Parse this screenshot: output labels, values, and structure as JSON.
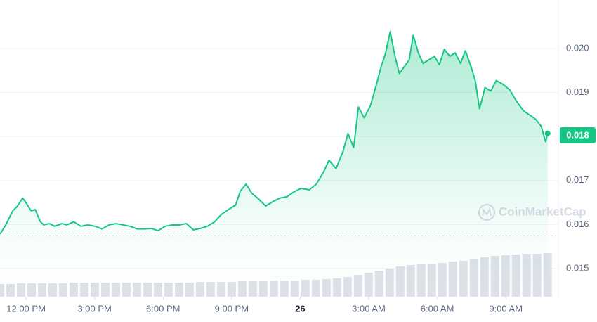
{
  "chart_data": {
    "type": "line",
    "color": "#16c784",
    "grid": true,
    "xlim": [
      10.86,
      35.3
    ],
    "ylim": [
      0.01436,
      0.0211
    ],
    "xticks": [
      {
        "value": 12,
        "label": "12:00 PM"
      },
      {
        "value": 15,
        "label": "3:00 PM"
      },
      {
        "value": 18,
        "label": "6:00 PM"
      },
      {
        "value": 21,
        "label": "9:00 PM"
      },
      {
        "value": 24,
        "label": "26"
      },
      {
        "value": 27,
        "label": "3:00 AM"
      },
      {
        "value": 30,
        "label": "6:00 AM"
      },
      {
        "value": 33,
        "label": "9:00 AM"
      }
    ],
    "yticks": [
      {
        "value": 0.02,
        "label": "0.020"
      },
      0.019,
      0.018,
      0.017,
      0.016,
      0.015
    ],
    "x": [
      10.86,
      11.11,
      11.42,
      11.63,
      11.85,
      12.03,
      12.22,
      12.4,
      12.62,
      12.77,
      13.02,
      13.26,
      13.57,
      13.78,
      14.09,
      14.4,
      14.71,
      15.02,
      15.32,
      15.63,
      15.94,
      16.25,
      16.55,
      16.86,
      17.17,
      17.48,
      17.78,
      18.09,
      18.4,
      18.71,
      19.02,
      19.32,
      19.63,
      19.94,
      20.25,
      20.55,
      20.86,
      21.17,
      21.38,
      21.63,
      21.88,
      22.18,
      22.49,
      22.8,
      23.11,
      23.42,
      23.72,
      24.03,
      24.4,
      24.71,
      25.02,
      25.26,
      25.57,
      25.88,
      26.09,
      26.34,
      26.55,
      26.8,
      27.08,
      27.32,
      27.54,
      27.72,
      27.94,
      28.15,
      28.34,
      28.55,
      28.77,
      28.95,
      29.17,
      29.38,
      29.63,
      29.88,
      30.09,
      30.31,
      30.55,
      30.78,
      31.02,
      31.23,
      31.48,
      31.66,
      31.85,
      32.09,
      32.34,
      32.58,
      32.86,
      33.17,
      33.48,
      33.78,
      34.09,
      34.31,
      34.55,
      34.74,
      34.83
    ],
    "values": [
      0.01578,
      0.01599,
      0.01631,
      0.01642,
      0.0166,
      0.01647,
      0.01631,
      0.01634,
      0.01607,
      0.01599,
      0.01602,
      0.01596,
      0.01602,
      0.01599,
      0.01606,
      0.01596,
      0.01599,
      0.01596,
      0.0159,
      0.01599,
      0.01602,
      0.01599,
      0.01596,
      0.0159,
      0.0159,
      0.01591,
      0.01586,
      0.01596,
      0.01599,
      0.01599,
      0.01602,
      0.01588,
      0.01591,
      0.01596,
      0.01606,
      0.01623,
      0.01634,
      0.01644,
      0.01676,
      0.01692,
      0.01671,
      0.01658,
      0.01642,
      0.01652,
      0.0166,
      0.01663,
      0.01674,
      0.01682,
      0.01679,
      0.01692,
      0.01719,
      0.01746,
      0.01727,
      0.01767,
      0.01807,
      0.01775,
      0.01867,
      0.01842,
      0.01871,
      0.01915,
      0.01958,
      0.01986,
      0.02038,
      0.01982,
      0.01943,
      0.01958,
      0.01974,
      0.0203,
      0.0199,
      0.01966,
      0.01974,
      0.01982,
      0.01963,
      0.01998,
      0.01982,
      0.0199,
      0.01966,
      0.01995,
      0.01958,
      0.01927,
      0.01863,
      0.01911,
      0.01903,
      0.01927,
      0.01919,
      0.01906,
      0.01879,
      0.01858,
      0.01847,
      0.01839,
      0.01823,
      0.01788,
      0.01807
    ],
    "reference_line": 0.01574,
    "current_price_label": "0.018",
    "watermark": "CoinMarketCap",
    "volume": {
      "color": "#dde1e8",
      "ylim": [
        0,
        100
      ],
      "values": [
        18,
        18,
        19,
        19,
        19,
        19,
        19,
        20,
        20,
        20,
        20,
        20,
        20,
        20,
        20,
        20,
        20,
        20,
        20,
        21,
        21,
        21,
        21,
        22,
        22,
        22,
        23,
        23,
        23,
        24,
        24,
        25,
        26,
        28,
        31,
        34,
        37,
        40,
        43,
        45,
        46,
        47,
        48,
        50,
        51,
        54,
        56,
        58,
        59,
        60,
        61,
        61,
        62
      ]
    }
  }
}
